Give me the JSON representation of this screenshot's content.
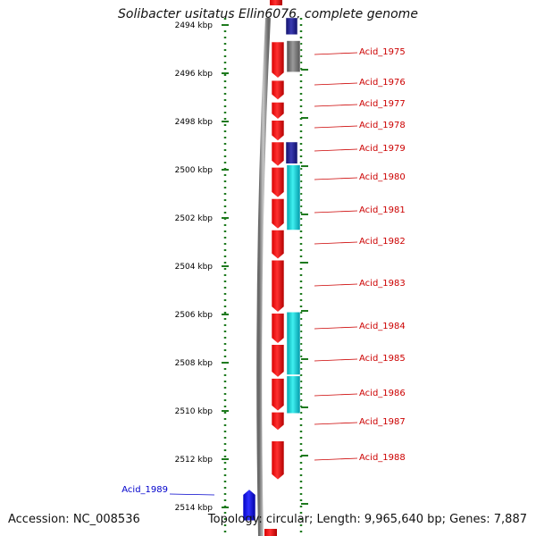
{
  "title": "Solibacter usitatus Ellin6076, complete genome",
  "footer": {
    "accession": "Accession: NC_008536",
    "summary": "Topology: circular; Length: 9,965,640 bp; Genes: 7,887"
  },
  "colors": {
    "red_gene": "#ff0000",
    "red_label": "#cc0000",
    "blue_gene": "#0000ff",
    "blue_label": "#0000cc",
    "navy": "#1a1a8c",
    "gray": "#707070",
    "cyan": "#00d0d8",
    "ticks": "#1f7a1f",
    "backbone": "#8a8a8a"
  },
  "axis": {
    "unit": "kbp",
    "start": 2494,
    "end": 2514,
    "step": 2,
    "labels": [
      "2494 kbp",
      "2496 kbp",
      "2498 kbp",
      "2500 kbp",
      "2502 kbp",
      "2504 kbp",
      "2506 kbp",
      "2508 kbp",
      "2510 kbp",
      "2512 kbp",
      "2514 kbp"
    ]
  },
  "genes": [
    {
      "name": "Acid_1975",
      "start": 2494.7,
      "end": 2496.2,
      "color": "red",
      "lane": "cds"
    },
    {
      "name": "Acid_1976",
      "start": 2496.3,
      "end": 2497.1,
      "color": "red",
      "lane": "cds"
    },
    {
      "name": "Acid_1977",
      "start": 2497.2,
      "end": 2497.9,
      "color": "red",
      "lane": "cds"
    },
    {
      "name": "Acid_1978",
      "start": 2497.95,
      "end": 2498.8,
      "color": "red",
      "lane": "cds"
    },
    {
      "name": "Acid_1979",
      "start": 2498.85,
      "end": 2499.85,
      "color": "red",
      "lane": "cds"
    },
    {
      "name": "Acid_1980",
      "start": 2499.9,
      "end": 2501.15,
      "color": "red",
      "lane": "cds"
    },
    {
      "name": "Acid_1981",
      "start": 2501.2,
      "end": 2502.45,
      "color": "red",
      "lane": "cds"
    },
    {
      "name": "Acid_1982",
      "start": 2502.5,
      "end": 2503.7,
      "color": "red",
      "lane": "cds"
    },
    {
      "name": "Acid_1983",
      "start": 2503.75,
      "end": 2505.9,
      "color": "red",
      "lane": "cds"
    },
    {
      "name": "Acid_1984",
      "start": 2505.95,
      "end": 2507.2,
      "color": "red",
      "lane": "cds"
    },
    {
      "name": "Acid_1985",
      "start": 2507.25,
      "end": 2508.6,
      "color": "red",
      "lane": "cds"
    },
    {
      "name": "Acid_1986",
      "start": 2508.65,
      "end": 2510.0,
      "color": "red",
      "lane": "cds"
    },
    {
      "name": "Acid_1987",
      "start": 2510.05,
      "end": 2510.8,
      "color": "red",
      "lane": "cds"
    },
    {
      "name": "Acid_1988",
      "start": 2511.25,
      "end": 2512.85,
      "color": "red",
      "lane": "cds"
    },
    {
      "name": "Acid_1989",
      "start": 2513.25,
      "end": 2514.55,
      "color": "blue",
      "lane": "reverse"
    }
  ],
  "features": [
    {
      "name": "navy-feature-top",
      "start": 2493.7,
      "end": 2494.4,
      "color": "navy"
    },
    {
      "name": "gray-feature",
      "start": 2494.65,
      "end": 2495.95,
      "color": "gray"
    },
    {
      "name": "navy-feature-mid",
      "start": 2498.85,
      "end": 2499.75,
      "color": "navy"
    },
    {
      "name": "cyan-feature-1",
      "start": 2499.8,
      "end": 2502.5,
      "color": "cyan"
    },
    {
      "name": "cyan-feature-2",
      "start": 2505.9,
      "end": 2508.5,
      "color": "cyan"
    },
    {
      "name": "cyan-feature-3",
      "start": 2508.55,
      "end": 2510.1,
      "color": "cyan"
    }
  ]
}
